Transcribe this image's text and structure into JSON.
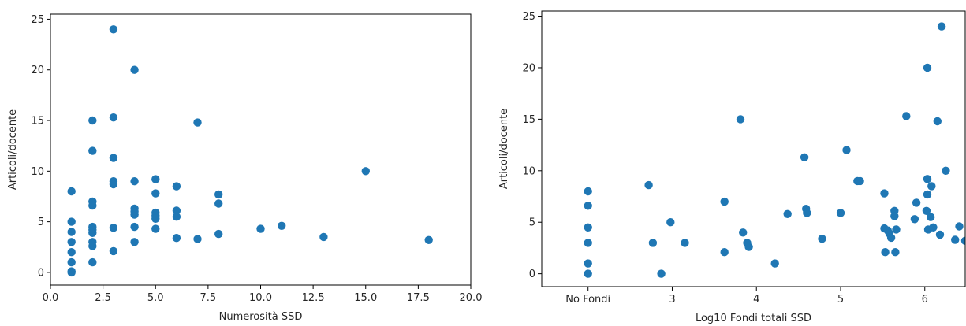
{
  "chart_data": [
    {
      "type": "scatter",
      "xlabel": "Numerosità SSD",
      "ylabel": "Articoli/docente",
      "xlim": [
        0,
        20
      ],
      "ylim": [
        -1.25,
        25.5
      ],
      "xticks": [
        {
          "value": 0,
          "label": "0.0"
        },
        {
          "value": 2.5,
          "label": "2.5"
        },
        {
          "value": 5,
          "label": "5.0"
        },
        {
          "value": 7.5,
          "label": "7.5"
        },
        {
          "value": 10,
          "label": "10.0"
        },
        {
          "value": 12.5,
          "label": "12.5"
        },
        {
          "value": 15,
          "label": "15.0"
        },
        {
          "value": 17.5,
          "label": "17.5"
        },
        {
          "value": 20,
          "label": "20.0"
        }
      ],
      "yticks": [
        {
          "value": 0,
          "label": "0"
        },
        {
          "value": 5,
          "label": "5"
        },
        {
          "value": 10,
          "label": "10"
        },
        {
          "value": 15,
          "label": "15"
        },
        {
          "value": 20,
          "label": "20"
        },
        {
          "value": 25,
          "label": "25"
        }
      ],
      "grid": false,
      "color": "#1f77b4",
      "points": [
        [
          1,
          8.0
        ],
        [
          1,
          5.0
        ],
        [
          1,
          4.0
        ],
        [
          1,
          3.0
        ],
        [
          1,
          2.0
        ],
        [
          1,
          1.0
        ],
        [
          1,
          0.1
        ],
        [
          1,
          0.0
        ],
        [
          2,
          15.0
        ],
        [
          2,
          12.0
        ],
        [
          2,
          7.0
        ],
        [
          2,
          6.6
        ],
        [
          2,
          4.5
        ],
        [
          2,
          4.2
        ],
        [
          2,
          3.9
        ],
        [
          2,
          3.0
        ],
        [
          2,
          2.6
        ],
        [
          2,
          1.0
        ],
        [
          3,
          24.0
        ],
        [
          3,
          15.3
        ],
        [
          3,
          11.3
        ],
        [
          3,
          9.0
        ],
        [
          3,
          8.7
        ],
        [
          3,
          4.4
        ],
        [
          3,
          2.1
        ],
        [
          4,
          20.0
        ],
        [
          4,
          9.0
        ],
        [
          4,
          6.3
        ],
        [
          4,
          6.0
        ],
        [
          4,
          5.7
        ],
        [
          4,
          4.5
        ],
        [
          4,
          3.0
        ],
        [
          5,
          9.2
        ],
        [
          5,
          7.8
        ],
        [
          5,
          5.9
        ],
        [
          5,
          5.6
        ],
        [
          5,
          5.3
        ],
        [
          5,
          4.3
        ],
        [
          6,
          8.5
        ],
        [
          6,
          6.1
        ],
        [
          6,
          5.5
        ],
        [
          6,
          3.4
        ],
        [
          7,
          14.8
        ],
        [
          7,
          3.3
        ],
        [
          8,
          7.7
        ],
        [
          8,
          6.8
        ],
        [
          8,
          3.8
        ],
        [
          10,
          4.3
        ],
        [
          11,
          4.6
        ],
        [
          13,
          3.5
        ],
        [
          15,
          10.0
        ],
        [
          18,
          3.2
        ]
      ]
    },
    {
      "type": "scatter",
      "xlabel": "Log10 Fondi totali SSD",
      "ylabel": "Articoli/docente",
      "xlim": [
        1.45,
        6.48
      ],
      "ylim": [
        -1.25,
        25.5
      ],
      "xticks": [
        {
          "value": 2,
          "label": "No Fondi"
        },
        {
          "value": 3,
          "label": "3"
        },
        {
          "value": 4,
          "label": "4"
        },
        {
          "value": 5,
          "label": "5"
        },
        {
          "value": 6,
          "label": "6"
        }
      ],
      "yticks": [
        {
          "value": 0,
          "label": "0"
        },
        {
          "value": 5,
          "label": "5"
        },
        {
          "value": 10,
          "label": "10"
        },
        {
          "value": 15,
          "label": "15"
        },
        {
          "value": 20,
          "label": "20"
        },
        {
          "value": 25,
          "label": "25"
        }
      ],
      "grid": false,
      "color": "#1f77b4",
      "points": [
        [
          2,
          8.0
        ],
        [
          2,
          6.6
        ],
        [
          2,
          4.5
        ],
        [
          2,
          3.0
        ],
        [
          2,
          1.0
        ],
        [
          2,
          0.0
        ],
        [
          2.72,
          8.6
        ],
        [
          2.77,
          3.0
        ],
        [
          2.87,
          0.0
        ],
        [
          2.98,
          5.0
        ],
        [
          3.15,
          3.0
        ],
        [
          3.62,
          7.0
        ],
        [
          3.62,
          2.1
        ],
        [
          3.81,
          15.0
        ],
        [
          3.84,
          4.0
        ],
        [
          3.89,
          3.0
        ],
        [
          3.91,
          2.6
        ],
        [
          4.22,
          1.0
        ],
        [
          4.37,
          5.8
        ],
        [
          4.57,
          11.3
        ],
        [
          4.59,
          6.3
        ],
        [
          4.6,
          5.9
        ],
        [
          4.78,
          3.4
        ],
        [
          5.0,
          5.9
        ],
        [
          5.07,
          12.0
        ],
        [
          5.2,
          9.0
        ],
        [
          5.23,
          9.0
        ],
        [
          5.52,
          7.8
        ],
        [
          5.52,
          4.4
        ],
        [
          5.53,
          2.1
        ],
        [
          5.56,
          4.2
        ],
        [
          5.58,
          3.9
        ],
        [
          5.6,
          3.5
        ],
        [
          5.64,
          6.1
        ],
        [
          5.64,
          5.6
        ],
        [
          5.66,
          4.3
        ],
        [
          5.65,
          2.1
        ],
        [
          5.78,
          15.3
        ],
        [
          5.88,
          5.3
        ],
        [
          5.9,
          6.9
        ],
        [
          6.02,
          6.1
        ],
        [
          6.03,
          20.0
        ],
        [
          6.03,
          9.2
        ],
        [
          6.03,
          7.7
        ],
        [
          6.04,
          4.3
        ],
        [
          6.07,
          5.5
        ],
        [
          6.08,
          8.5
        ],
        [
          6.1,
          4.5
        ],
        [
          6.15,
          14.8
        ],
        [
          6.18,
          3.8
        ],
        [
          6.2,
          24.0
        ],
        [
          6.25,
          10.0
        ],
        [
          6.36,
          3.3
        ],
        [
          6.41,
          4.6
        ],
        [
          6.48,
          3.2
        ]
      ]
    }
  ]
}
